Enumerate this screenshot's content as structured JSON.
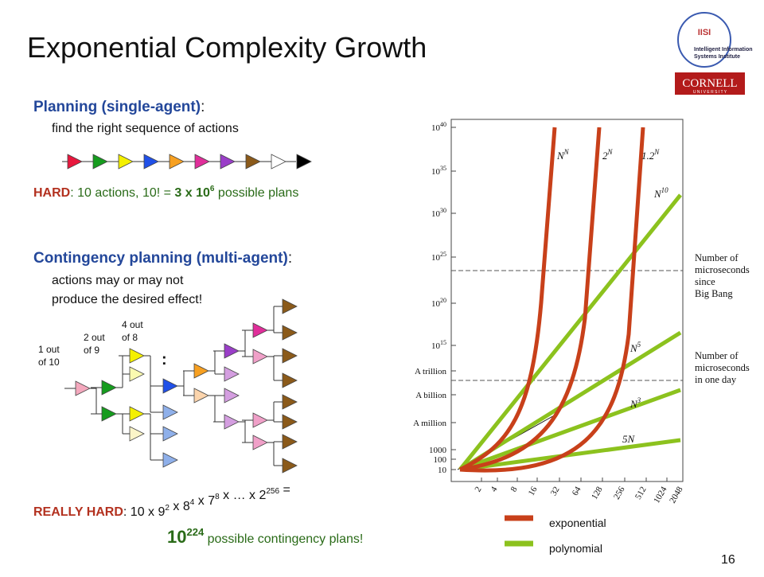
{
  "title": "Exponential Complexity Growth",
  "logo": {
    "acronym": "IISI",
    "line1": "Intelligent Information",
    "line2": "Systems Institute",
    "cornell": "CORNELL",
    "university": "U N I V E R S I T Y"
  },
  "planning": {
    "heading": "Planning (single-agent)",
    "colon": ":",
    "description": "find the right sequence of actions"
  },
  "hard": {
    "label": "HARD",
    "rest": ":  10 actions, 10! = ",
    "result": "3 x 10",
    "exponent": "6",
    "suffix": " possible plans"
  },
  "contingency": {
    "heading": "Contingency planning (multi-agent)",
    "colon": ":",
    "lines": [
      "actions may or may not",
      "produce the desired effect!"
    ]
  },
  "tree_labels": [
    [
      "1 out",
      "of 10"
    ],
    [
      "2 out",
      "of 9"
    ],
    [
      "4 out",
      "of 8"
    ]
  ],
  "ellipsis": ":",
  "really_hard": {
    "label": "REALLY HARD",
    "parts": [
      {
        "text": ":  10 x 9",
        "sup": "2"
      },
      {
        "text": " x 8",
        "sup": "4"
      },
      {
        "text": " x 7",
        "sup": "8"
      },
      {
        "text": " x … x 2",
        "sup": "256"
      }
    ],
    "end": " =",
    "result": "10",
    "result_exponent": "224",
    "result_suffix": " possible contingency plans!"
  },
  "chart": {
    "y_labels": [
      {
        "base": "10",
        "exp": "40"
      },
      {
        "base": "10",
        "exp": "35"
      },
      {
        "base": "10",
        "exp": "30"
      },
      {
        "base": "10",
        "exp": "25"
      },
      {
        "base": "10",
        "exp": "20"
      },
      {
        "base": "10",
        "exp": "15"
      },
      {
        "text": "A trillion"
      },
      {
        "text": "A billion"
      },
      {
        "text": "A million"
      },
      {
        "text": "1000"
      },
      {
        "text": "100"
      },
      {
        "text": "10"
      }
    ],
    "x_labels": [
      "2",
      "4",
      "8",
      "16",
      "32",
      "64",
      "128",
      "256",
      "512",
      "1024",
      "2048"
    ],
    "curve_labels": [
      {
        "base": "N",
        "exp": "N"
      },
      {
        "base": "2",
        "exp": "N"
      },
      {
        "base": "1.2",
        "exp": "N"
      },
      {
        "base": "N",
        "exp": "10"
      },
      {
        "base": "N",
        "exp": "5"
      },
      {
        "base": "N",
        "exp": "3"
      },
      {
        "base": "5N",
        "exp": ""
      }
    ],
    "notes": [
      [
        "Number of",
        "microseconds",
        "since",
        "Big Bang"
      ],
      [
        "Number of",
        "microseconds",
        "in one day"
      ]
    ]
  },
  "legend": [
    "exponential",
    "polynomial"
  ],
  "page_number": "16"
}
